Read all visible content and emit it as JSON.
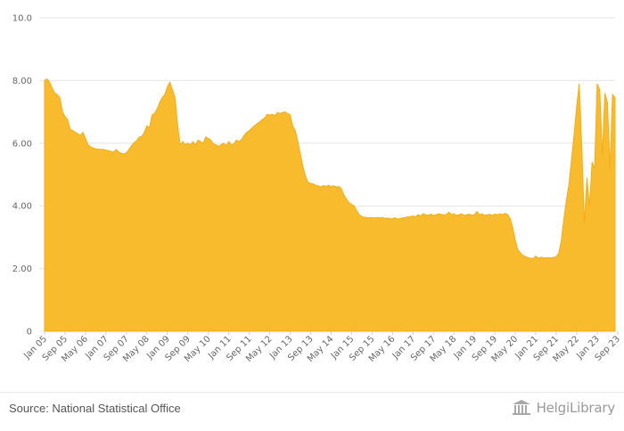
{
  "chart_data": {
    "type": "area",
    "title": "",
    "xlabel": "",
    "ylabel": "",
    "ylim": [
      0,
      10
    ],
    "y_ticks": [
      "0",
      "2.00",
      "4.00",
      "6.00",
      "8.00",
      "10.0"
    ],
    "x_ticks": [
      "Jan 05",
      "Sep 05",
      "May 06",
      "Jan 07",
      "Sep 07",
      "May 08",
      "Jan 09",
      "Sep 09",
      "May 10",
      "Jan 11",
      "Sep 11",
      "May 12",
      "Jan 13",
      "Sep 13",
      "May 14",
      "Jan 15",
      "Sep 15",
      "May 16",
      "Jan 17",
      "Sep 17",
      "May 18",
      "Jan 19",
      "Sep 19",
      "May 20",
      "Jan 21",
      "Sep 21",
      "May 22",
      "Jan 23",
      "Sep 23"
    ],
    "grid": true,
    "legend": "none",
    "fill_color": "#f9bb2e",
    "series": [
      {
        "points": [
          [
            "2005-01",
            8.0
          ],
          [
            "2005-02",
            8.05
          ],
          [
            "2005-03",
            7.95
          ],
          [
            "2005-04",
            7.75
          ],
          [
            "2005-05",
            7.6
          ],
          [
            "2005-06",
            7.55
          ],
          [
            "2005-07",
            7.45
          ],
          [
            "2005-08",
            7.0
          ],
          [
            "2005-09",
            6.85
          ],
          [
            "2005-10",
            6.75
          ],
          [
            "2005-11",
            6.45
          ],
          [
            "2005-12",
            6.4
          ],
          [
            "2006-01",
            6.35
          ],
          [
            "2006-02",
            6.3
          ],
          [
            "2006-03",
            6.25
          ],
          [
            "2006-04",
            6.35
          ],
          [
            "2006-05",
            6.15
          ],
          [
            "2006-06",
            5.95
          ],
          [
            "2006-07",
            5.88
          ],
          [
            "2006-08",
            5.85
          ],
          [
            "2006-09",
            5.82
          ],
          [
            "2006-10",
            5.81
          ],
          [
            "2006-11",
            5.8
          ],
          [
            "2006-12",
            5.8
          ],
          [
            "2007-01",
            5.78
          ],
          [
            "2007-02",
            5.76
          ],
          [
            "2007-03",
            5.74
          ],
          [
            "2007-04",
            5.72
          ],
          [
            "2007-05",
            5.8
          ],
          [
            "2007-06",
            5.72
          ],
          [
            "2007-07",
            5.68
          ],
          [
            "2007-08",
            5.66
          ],
          [
            "2007-09",
            5.7
          ],
          [
            "2007-10",
            5.8
          ],
          [
            "2007-11",
            5.92
          ],
          [
            "2007-12",
            6.02
          ],
          [
            "2008-01",
            6.08
          ],
          [
            "2008-02",
            6.2
          ],
          [
            "2008-03",
            6.22
          ],
          [
            "2008-04",
            6.35
          ],
          [
            "2008-05",
            6.55
          ],
          [
            "2008-06",
            6.5
          ],
          [
            "2008-07",
            6.9
          ],
          [
            "2008-08",
            6.95
          ],
          [
            "2008-09",
            7.1
          ],
          [
            "2008-10",
            7.3
          ],
          [
            "2008-11",
            7.45
          ],
          [
            "2008-12",
            7.55
          ],
          [
            "2009-01",
            7.8
          ],
          [
            "2009-02",
            7.95
          ],
          [
            "2009-03",
            7.7
          ],
          [
            "2009-04",
            7.45
          ],
          [
            "2009-05",
            6.6
          ],
          [
            "2009-06",
            5.95
          ],
          [
            "2009-07",
            6.05
          ],
          [
            "2009-08",
            5.95
          ],
          [
            "2009-09",
            6.0
          ],
          [
            "2009-10",
            5.95
          ],
          [
            "2009-11",
            6.05
          ],
          [
            "2009-12",
            5.95
          ],
          [
            "2010-01",
            6.1
          ],
          [
            "2010-02",
            6.05
          ],
          [
            "2010-03",
            6.0
          ],
          [
            "2010-04",
            6.2
          ],
          [
            "2010-05",
            6.15
          ],
          [
            "2010-06",
            6.1
          ],
          [
            "2010-07",
            5.98
          ],
          [
            "2010-08",
            5.95
          ],
          [
            "2010-09",
            5.9
          ],
          [
            "2010-10",
            5.95
          ],
          [
            "2010-11",
            6.0
          ],
          [
            "2010-12",
            5.92
          ],
          [
            "2011-01",
            6.05
          ],
          [
            "2011-02",
            5.95
          ],
          [
            "2011-03",
            5.98
          ],
          [
            "2011-04",
            6.1
          ],
          [
            "2011-05",
            6.05
          ],
          [
            "2011-06",
            6.12
          ],
          [
            "2011-07",
            6.25
          ],
          [
            "2011-08",
            6.35
          ],
          [
            "2011-09",
            6.4
          ],
          [
            "2011-10",
            6.48
          ],
          [
            "2011-11",
            6.55
          ],
          [
            "2011-12",
            6.62
          ],
          [
            "2012-01",
            6.68
          ],
          [
            "2012-02",
            6.75
          ],
          [
            "2012-03",
            6.8
          ],
          [
            "2012-04",
            6.92
          ],
          [
            "2012-05",
            6.9
          ],
          [
            "2012-06",
            6.92
          ],
          [
            "2012-07",
            6.88
          ],
          [
            "2012-08",
            6.98
          ],
          [
            "2012-09",
            6.95
          ],
          [
            "2012-10",
            6.98
          ],
          [
            "2012-11",
            7.0
          ],
          [
            "2012-12",
            6.95
          ],
          [
            "2013-01",
            6.9
          ],
          [
            "2013-02",
            6.55
          ],
          [
            "2013-03",
            6.4
          ],
          [
            "2013-04",
            6.05
          ],
          [
            "2013-05",
            5.65
          ],
          [
            "2013-06",
            5.25
          ],
          [
            "2013-07",
            4.95
          ],
          [
            "2013-08",
            4.75
          ],
          [
            "2013-09",
            4.72
          ],
          [
            "2013-10",
            4.7
          ],
          [
            "2013-11",
            4.66
          ],
          [
            "2013-12",
            4.64
          ],
          [
            "2014-01",
            4.6
          ],
          [
            "2014-02",
            4.65
          ],
          [
            "2014-03",
            4.62
          ],
          [
            "2014-04",
            4.66
          ],
          [
            "2014-05",
            4.62
          ],
          [
            "2014-06",
            4.64
          ],
          [
            "2014-07",
            4.6
          ],
          [
            "2014-08",
            4.62
          ],
          [
            "2014-09",
            4.55
          ],
          [
            "2014-10",
            4.35
          ],
          [
            "2014-11",
            4.22
          ],
          [
            "2014-12",
            4.1
          ],
          [
            "2015-01",
            4.05
          ],
          [
            "2015-02",
            4.0
          ],
          [
            "2015-03",
            3.85
          ],
          [
            "2015-04",
            3.72
          ],
          [
            "2015-05",
            3.66
          ],
          [
            "2015-06",
            3.64
          ],
          [
            "2015-07",
            3.63
          ],
          [
            "2015-08",
            3.62
          ],
          [
            "2015-09",
            3.63
          ],
          [
            "2015-10",
            3.62
          ],
          [
            "2015-11",
            3.63
          ],
          [
            "2015-12",
            3.62
          ],
          [
            "2016-01",
            3.63
          ],
          [
            "2016-02",
            3.6
          ],
          [
            "2016-03",
            3.62
          ],
          [
            "2016-04",
            3.58
          ],
          [
            "2016-05",
            3.6
          ],
          [
            "2016-06",
            3.62
          ],
          [
            "2016-07",
            3.58
          ],
          [
            "2016-08",
            3.6
          ],
          [
            "2016-09",
            3.62
          ],
          [
            "2016-10",
            3.63
          ],
          [
            "2016-11",
            3.65
          ],
          [
            "2016-12",
            3.66
          ],
          [
            "2017-01",
            3.68
          ],
          [
            "2017-02",
            3.65
          ],
          [
            "2017-03",
            3.72
          ],
          [
            "2017-04",
            3.68
          ],
          [
            "2017-05",
            3.75
          ],
          [
            "2017-06",
            3.72
          ],
          [
            "2017-07",
            3.7
          ],
          [
            "2017-08",
            3.74
          ],
          [
            "2017-09",
            3.7
          ],
          [
            "2017-10",
            3.72
          ],
          [
            "2017-11",
            3.75
          ],
          [
            "2017-12",
            3.73
          ],
          [
            "2018-01",
            3.72
          ],
          [
            "2018-02",
            3.72
          ],
          [
            "2018-03",
            3.8
          ],
          [
            "2018-04",
            3.72
          ],
          [
            "2018-05",
            3.75
          ],
          [
            "2018-06",
            3.7
          ],
          [
            "2018-07",
            3.72
          ],
          [
            "2018-08",
            3.75
          ],
          [
            "2018-09",
            3.7
          ],
          [
            "2018-10",
            3.72
          ],
          [
            "2018-11",
            3.74
          ],
          [
            "2018-12",
            3.7
          ],
          [
            "2019-01",
            3.72
          ],
          [
            "2019-02",
            3.82
          ],
          [
            "2019-03",
            3.72
          ],
          [
            "2019-04",
            3.75
          ],
          [
            "2019-05",
            3.7
          ],
          [
            "2019-06",
            3.72
          ],
          [
            "2019-07",
            3.73
          ],
          [
            "2019-08",
            3.7
          ],
          [
            "2019-09",
            3.74
          ],
          [
            "2019-10",
            3.72
          ],
          [
            "2019-11",
            3.75
          ],
          [
            "2019-12",
            3.72
          ],
          [
            "2020-01",
            3.76
          ],
          [
            "2020-02",
            3.72
          ],
          [
            "2020-03",
            3.6
          ],
          [
            "2020-04",
            3.3
          ],
          [
            "2020-05",
            2.9
          ],
          [
            "2020-06",
            2.6
          ],
          [
            "2020-07",
            2.5
          ],
          [
            "2020-08",
            2.42
          ],
          [
            "2020-09",
            2.38
          ],
          [
            "2020-10",
            2.35
          ],
          [
            "2020-11",
            2.33
          ],
          [
            "2020-12",
            2.32
          ],
          [
            "2021-01",
            2.4
          ],
          [
            "2021-02",
            2.33
          ],
          [
            "2021-03",
            2.36
          ],
          [
            "2021-04",
            2.35
          ],
          [
            "2021-05",
            2.34
          ],
          [
            "2021-06",
            2.35
          ],
          [
            "2021-07",
            2.34
          ],
          [
            "2021-08",
            2.36
          ],
          [
            "2021-09",
            2.38
          ],
          [
            "2021-10",
            2.5
          ],
          [
            "2021-11",
            2.9
          ],
          [
            "2021-12",
            3.6
          ],
          [
            "2022-01",
            4.2
          ],
          [
            "2022-02",
            4.7
          ],
          [
            "2022-03",
            5.5
          ],
          [
            "2022-04",
            6.3
          ],
          [
            "2022-05",
            7.2
          ],
          [
            "2022-06",
            7.9
          ],
          [
            "2022-07",
            5.8
          ],
          [
            "2022-08",
            3.45
          ],
          [
            "2022-09",
            4.9
          ],
          [
            "2022-10",
            4.0
          ],
          [
            "2022-11",
            5.4
          ],
          [
            "2022-12",
            5.2
          ],
          [
            "2023-01",
            7.9
          ],
          [
            "2023-02",
            7.7
          ],
          [
            "2023-03",
            5.6
          ],
          [
            "2023-04",
            7.6
          ],
          [
            "2023-05",
            7.3
          ],
          [
            "2023-06",
            5.2
          ],
          [
            "2023-07",
            7.55
          ],
          [
            "2023-08",
            7.45
          ]
        ]
      }
    ]
  },
  "footer": {
    "source": "Source: National Statistical Office",
    "brand": "HelgiLibrary"
  }
}
